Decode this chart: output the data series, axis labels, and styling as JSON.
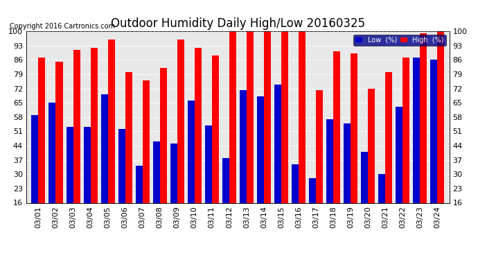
{
  "title": "Outdoor Humidity Daily High/Low 20160325",
  "copyright": "Copyright 2016 Cartronics.com",
  "dates": [
    "03/01",
    "03/02",
    "03/03",
    "03/04",
    "03/05",
    "03/06",
    "03/07",
    "03/08",
    "03/09",
    "03/10",
    "03/11",
    "03/12",
    "03/13",
    "03/14",
    "03/15",
    "03/16",
    "03/17",
    "03/18",
    "03/19",
    "03/20",
    "03/21",
    "03/22",
    "03/23",
    "03/24"
  ],
  "high": [
    87,
    85,
    91,
    92,
    96,
    80,
    76,
    82,
    96,
    92,
    88,
    100,
    100,
    100,
    100,
    100,
    71,
    90,
    89,
    72,
    80,
    87,
    99,
    100
  ],
  "low": [
    59,
    65,
    53,
    53,
    69,
    52,
    34,
    46,
    45,
    66,
    54,
    38,
    71,
    68,
    74,
    35,
    28,
    57,
    55,
    41,
    30,
    63,
    87,
    86
  ],
  "high_color": "#ff0000",
  "low_color": "#0000cc",
  "bg_color": "#ffffff",
  "plot_bg_color": "#e8e8e8",
  "grid_color": "#ffffff",
  "ylim_min": 16,
  "ylim_max": 100,
  "yticks": [
    16,
    23,
    30,
    37,
    44,
    51,
    58,
    65,
    72,
    79,
    86,
    93,
    100
  ],
  "bar_width": 0.4,
  "title_fontsize": 12,
  "tick_fontsize": 8,
  "legend_low_label": "Low  (%)",
  "legend_high_label": "High  (%)"
}
